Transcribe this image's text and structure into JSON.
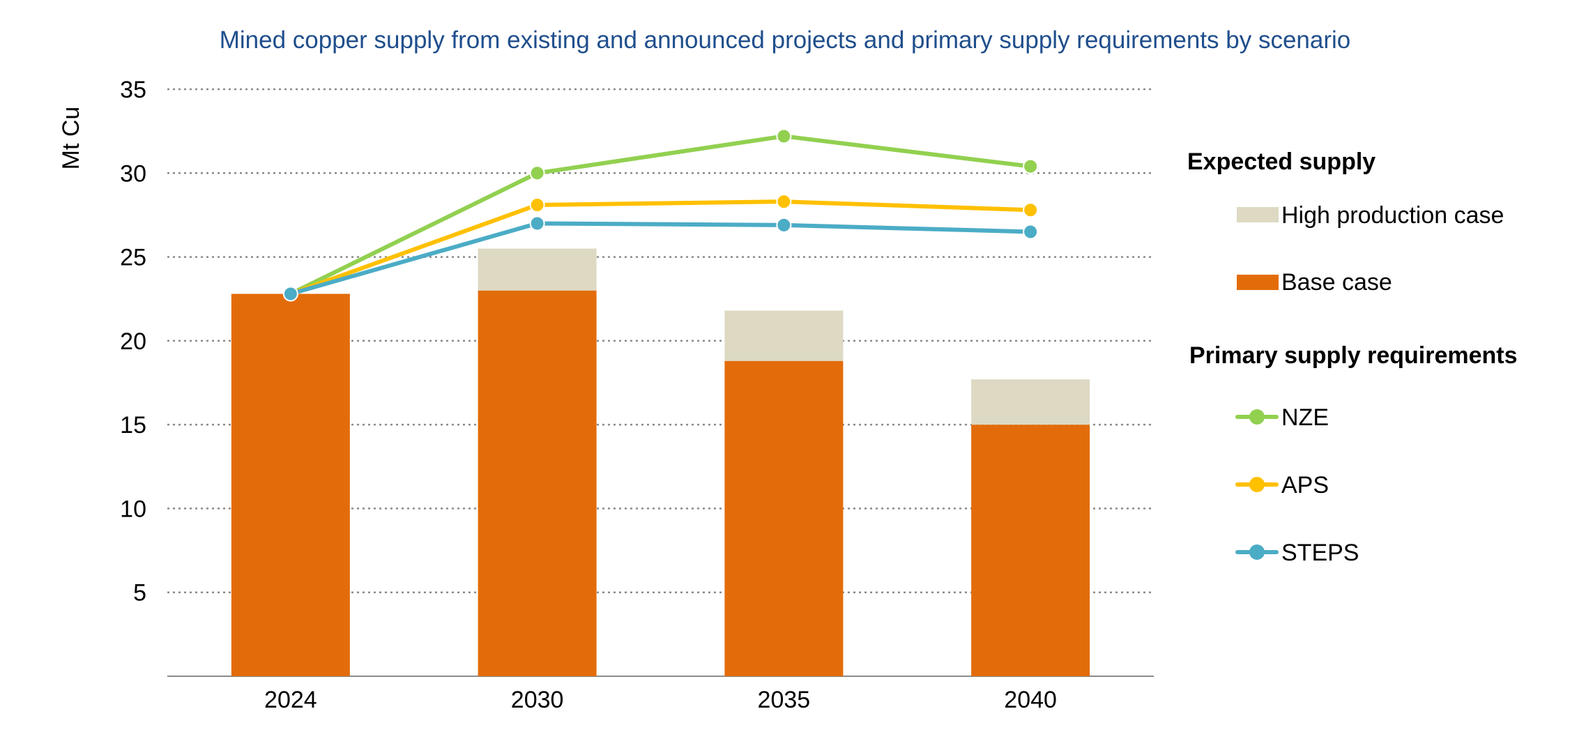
{
  "chart_data": {
    "type": "bar",
    "title": "Mined copper supply from existing and announced projects and primary supply requirements by scenario",
    "ylabel": "Mt Cu",
    "xlabel": "",
    "ylim": [
      0,
      35
    ],
    "yticks": [
      5,
      10,
      15,
      20,
      25,
      30,
      35
    ],
    "categories": [
      "2024",
      "2030",
      "2035",
      "2040"
    ],
    "grid": true,
    "legend_position": "right",
    "bar_series": [
      {
        "name": "Base case",
        "values": [
          22.8,
          23.0,
          18.8,
          15.0
        ],
        "color": "#e36c0a"
      },
      {
        "name": "High production case",
        "values": [
          0,
          2.5,
          3.0,
          2.7
        ],
        "color": "#ddd9c3"
      }
    ],
    "line_series": [
      {
        "name": "NZE",
        "values": [
          22.8,
          30.0,
          32.2,
          30.4
        ],
        "color": "#92d050"
      },
      {
        "name": "APS",
        "values": [
          22.8,
          28.1,
          28.3,
          27.8
        ],
        "color": "#ffc000"
      },
      {
        "name": "STEPS",
        "values": [
          22.8,
          27.0,
          26.9,
          26.5
        ],
        "color": "#4bacc6"
      }
    ]
  },
  "legend": {
    "expected_heading": "Expected supply",
    "high_label": "High production case",
    "base_label": "Base case",
    "primary_heading": "Primary supply requirements",
    "nze_label": "NZE",
    "aps_label": "APS",
    "steps_label": "STEPS"
  }
}
